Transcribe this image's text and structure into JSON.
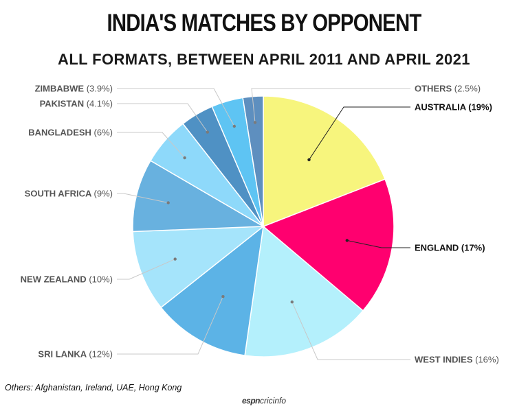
{
  "chart_data": {
    "type": "pie",
    "title": "INDIA'S MATCHES BY OPPONENT",
    "subtitle": "ALL FORMATS, BETWEEN APRIL 2011 AND APRIL 2021",
    "slices": [
      {
        "label": "AUSTRALIA",
        "value": 19,
        "pct_text": "(19%)",
        "color": "#f7f57d",
        "bold": true
      },
      {
        "label": "ENGLAND",
        "value": 17,
        "pct_text": "(17%)",
        "color": "#ff006f",
        "bold": true
      },
      {
        "label": "WEST INDIES",
        "value": 16,
        "pct_text": "(16%)",
        "color": "#b4f0fc",
        "bold": false
      },
      {
        "label": "SRI LANKA",
        "value": 12,
        "pct_text": "(12%)",
        "color": "#5cb3e6",
        "bold": false
      },
      {
        "label": "NEW ZEALAND",
        "value": 10,
        "pct_text": "(10%)",
        "color": "#a5e4fb",
        "bold": false
      },
      {
        "label": "SOUTH AFRICA",
        "value": 9,
        "pct_text": "(9%)",
        "color": "#68b1df",
        "bold": false
      },
      {
        "label": "BANGLADESH",
        "value": 6,
        "pct_text": "(6%)",
        "color": "#8ed9fa",
        "bold": false
      },
      {
        "label": "PAKISTAN",
        "value": 4.1,
        "pct_text": "(4.1%)",
        "color": "#4f91c4",
        "bold": false
      },
      {
        "label": "ZIMBABWE",
        "value": 3.9,
        "pct_text": "(3.9%)",
        "color": "#5ec4f3",
        "bold": false
      },
      {
        "label": "OTHERS",
        "value": 2.5,
        "pct_text": "(2.5%)",
        "color": "#5e8fbf",
        "bold": false
      }
    ]
  },
  "footnote": "Others: Afghanistan, Ireland, UAE, Hong Kong",
  "brand": {
    "part1": "espn",
    "part2": "cricinfo"
  },
  "colors": {
    "leader_light": "#c8c8c8",
    "leader_dark": "#222222",
    "label_gray": "#555555",
    "label_dark": "#111111"
  }
}
